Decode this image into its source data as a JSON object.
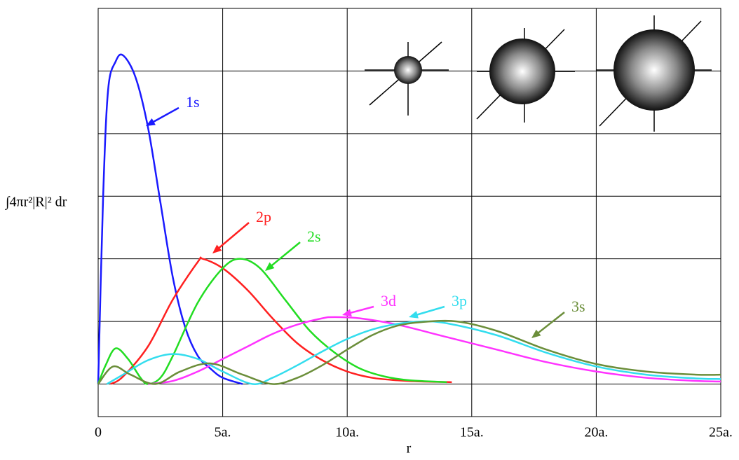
{
  "chart_data": {
    "type": "line",
    "y_label": "∫4πr²|R|² dr",
    "x_label": "r",
    "xlim": [
      0,
      25
    ],
    "ylim": [
      -0.52,
      6
    ],
    "xticks": [
      0,
      {
        "value": 5,
        "label": "5a."
      },
      {
        "value": 10,
        "label": "10a."
      },
      {
        "value": 15,
        "label": "15a."
      },
      {
        "value": 20,
        "label": "20a."
      },
      {
        "value": 25,
        "label": "25a."
      }
    ],
    "yticks": [
      0,
      1,
      2,
      3,
      4,
      5
    ],
    "grid": true,
    "series": [
      {
        "name": "1s",
        "color": "#1a1aff",
        "x": [
          0,
          0.2,
          0.4,
          0.7,
          1.0,
          1.5,
          2.0,
          2.5,
          3.0,
          3.5,
          4.0,
          4.5,
          5.0,
          5.8
        ],
        "values": [
          0,
          3.0,
          4.7,
          5.15,
          5.25,
          4.9,
          4.1,
          2.9,
          1.7,
          0.9,
          0.45,
          0.25,
          0.1,
          0
        ]
      },
      {
        "name": "2p",
        "color": "#ff2020",
        "x": [
          0.5,
          1,
          2,
          3,
          4,
          4.2,
          5,
          6,
          7,
          8,
          9,
          10,
          11,
          12,
          13,
          14.2
        ],
        "values": [
          0,
          0.12,
          0.6,
          1.35,
          1.95,
          2.0,
          1.85,
          1.5,
          1.05,
          0.65,
          0.38,
          0.2,
          0.1,
          0.06,
          0.04,
          0.03
        ]
      },
      {
        "name": "2s",
        "color": "#22dd22",
        "x": [
          0,
          0.3,
          0.7,
          1.2,
          1.7,
          2.0,
          2.5,
          3,
          4,
          5,
          5.7,
          6.5,
          7.5,
          8.5,
          9.5,
          10.5,
          11.5,
          12.5,
          14
        ],
        "values": [
          0,
          0.3,
          0.57,
          0.4,
          0.1,
          0,
          0.1,
          0.45,
          1.3,
          1.85,
          2.0,
          1.85,
          1.35,
          0.85,
          0.5,
          0.25,
          0.12,
          0.06,
          0.03
        ]
      },
      {
        "name": "3d",
        "color": "#ff33ff",
        "x": [
          2,
          3,
          4,
          5,
          6,
          7,
          8,
          9,
          9.5,
          10.5,
          12,
          14,
          16,
          18,
          20,
          22,
          24,
          25
        ],
        "values": [
          0,
          0.05,
          0.2,
          0.4,
          0.6,
          0.8,
          0.95,
          1.05,
          1.07,
          1.05,
          0.95,
          0.75,
          0.55,
          0.35,
          0.2,
          0.1,
          0.05,
          0.04
        ]
      },
      {
        "name": "3p",
        "color": "#33ddee",
        "x": [
          0.35,
          1,
          2,
          3,
          4,
          5,
          6.2,
          7,
          8,
          9,
          10,
          11,
          12,
          13,
          14,
          16,
          18,
          20,
          22,
          24,
          25
        ],
        "values": [
          0,
          0.15,
          0.38,
          0.48,
          0.4,
          0.2,
          0,
          0.1,
          0.3,
          0.52,
          0.72,
          0.87,
          0.96,
          1.0,
          0.97,
          0.78,
          0.5,
          0.28,
          0.15,
          0.09,
          0.08
        ]
      },
      {
        "name": "3s",
        "color": "#6b8e3a",
        "x": [
          0,
          0.6,
          1.3,
          2.3,
          3.3,
          4.5,
          5.8,
          7,
          8,
          9,
          10,
          11,
          12,
          13,
          14.4,
          16,
          18,
          20,
          22,
          24,
          25
        ],
        "values": [
          0,
          0.28,
          0.15,
          0,
          0.2,
          0.33,
          0.15,
          0,
          0.1,
          0.3,
          0.55,
          0.78,
          0.93,
          0.99,
          1.0,
          0.85,
          0.55,
          0.32,
          0.2,
          0.15,
          0.15
        ]
      }
    ]
  }
}
